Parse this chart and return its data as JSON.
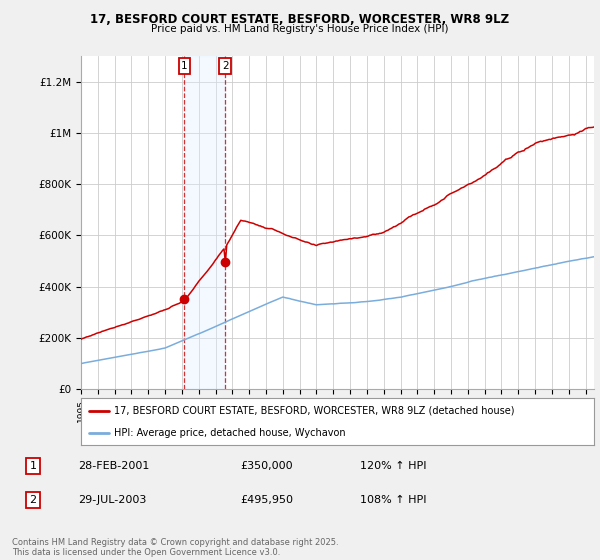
{
  "title": "17, BESFORD COURT ESTATE, BESFORD, WORCESTER, WR8 9LZ",
  "subtitle": "Price paid vs. HM Land Registry's House Price Index (HPI)",
  "ylabel_ticks": [
    "£0",
    "£200K",
    "£400K",
    "£600K",
    "£800K",
    "£1M",
    "£1.2M"
  ],
  "ylim": [
    0,
    1300000
  ],
  "xlim_start": 1995.0,
  "xlim_end": 2025.5,
  "red_line_label": "17, BESFORD COURT ESTATE, BESFORD, WORCESTER, WR8 9LZ (detached house)",
  "blue_line_label": "HPI: Average price, detached house, Wychavon",
  "transaction1_date": "28-FEB-2001",
  "transaction1_price": "£350,000",
  "transaction1_hpi": "120% ↑ HPI",
  "transaction1_x": 2001.15,
  "transaction1_y": 350000,
  "transaction2_date": "29-JUL-2003",
  "transaction2_price": "£495,950",
  "transaction2_hpi": "108% ↑ HPI",
  "transaction2_x": 2003.57,
  "transaction2_y": 495950,
  "footer": "Contains HM Land Registry data © Crown copyright and database right 2025.\nThis data is licensed under the Open Government Licence v3.0.",
  "background_color": "#f0f0f0",
  "plot_bg_color": "#ffffff",
  "grid_color": "#cccccc",
  "red_color": "#cc0000",
  "blue_color": "#7aaddc",
  "shade_color": "#ddeeff",
  "vline_color": "#cc0000",
  "box_color": "#cc0000"
}
